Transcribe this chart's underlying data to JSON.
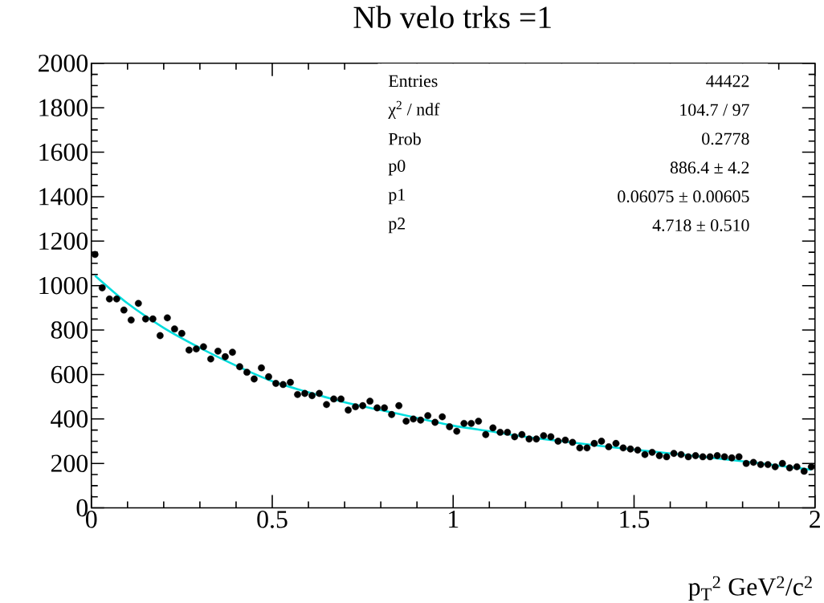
{
  "chart_data": {
    "type": "scatter",
    "title": "Nb velo trks =1",
    "xlabel": "p$_{T}$$^{2}$ GeV$^{2}$/c$^{2}$",
    "x": [
      0.01,
      0.03,
      0.05,
      0.07,
      0.09,
      0.11,
      0.13,
      0.15,
      0.17,
      0.19,
      0.21,
      0.23,
      0.25,
      0.27,
      0.29,
      0.31,
      0.33,
      0.35,
      0.37,
      0.39,
      0.41,
      0.43,
      0.45,
      0.47,
      0.49,
      0.51,
      0.53,
      0.55,
      0.57,
      0.59,
      0.61,
      0.63,
      0.65,
      0.67,
      0.69,
      0.71,
      0.73,
      0.75,
      0.77,
      0.79,
      0.81,
      0.83,
      0.85,
      0.87,
      0.89,
      0.91,
      0.93,
      0.95,
      0.97,
      0.99,
      1.01,
      1.03,
      1.05,
      1.07,
      1.09,
      1.11,
      1.13,
      1.15,
      1.17,
      1.19,
      1.21,
      1.23,
      1.25,
      1.27,
      1.29,
      1.31,
      1.33,
      1.35,
      1.37,
      1.39,
      1.41,
      1.43,
      1.45,
      1.47,
      1.49,
      1.51,
      1.53,
      1.55,
      1.57,
      1.59,
      1.61,
      1.63,
      1.65,
      1.67,
      1.69,
      1.71,
      1.73,
      1.75,
      1.77,
      1.79,
      1.81,
      1.83,
      1.85,
      1.87,
      1.89,
      1.91,
      1.93,
      1.95,
      1.97,
      1.99
    ],
    "series": [
      {
        "color": "#000000",
        "marker": "circle",
        "values": [
          1140,
          990,
          940,
          940,
          890,
          845,
          920,
          850,
          850,
          775,
          855,
          805,
          785,
          710,
          715,
          725,
          670,
          705,
          680,
          700,
          635,
          610,
          580,
          630,
          590,
          560,
          555,
          565,
          510,
          515,
          505,
          515,
          465,
          490,
          490,
          440,
          455,
          460,
          480,
          450,
          450,
          420,
          460,
          390,
          400,
          395,
          415,
          385,
          410,
          365,
          345,
          380,
          380,
          390,
          330,
          360,
          340,
          340,
          320,
          330,
          310,
          310,
          325,
          320,
          300,
          305,
          295,
          270,
          270,
          290,
          300,
          275,
          290,
          270,
          265,
          260,
          240,
          250,
          235,
          230,
          245,
          240,
          230,
          235,
          230,
          230,
          235,
          230,
          225,
          230,
          200,
          205,
          195,
          195,
          185,
          200,
          180,
          185,
          165,
          185
        ]
      },
      {
        "type": "line",
        "marker": "none",
        "color": "#00dddd",
        "x": [
          0.01,
          0.1,
          0.2,
          0.3,
          0.4,
          0.5,
          0.6,
          0.7,
          0.8,
          0.9,
          1.0,
          1.1,
          1.2,
          1.3,
          1.4,
          1.5,
          1.6,
          1.7,
          1.8,
          1.9,
          1.99
        ],
        "values": [
          1045,
          920,
          810,
          720,
          640,
          570,
          520,
          475,
          440,
          405,
          370,
          345,
          320,
          300,
          280,
          262,
          245,
          228,
          210,
          190,
          172
        ]
      }
    ],
    "xlim": [
      0,
      2
    ],
    "ylim": [
      0,
      2000
    ],
    "xticks": [
      0,
      0.5,
      1,
      1.5,
      2
    ],
    "yticks": [
      0,
      200,
      400,
      600,
      800,
      1000,
      1200,
      1400,
      1600,
      1800,
      2000
    ],
    "grid": false,
    "annotations": [
      "Entries",
      "44422",
      "χ$^{2}$ / ndf",
      "104.7 / 97",
      "Prob",
      "0.2778",
      "p0",
      "886.4 ± 4.2",
      "p1",
      "0.06075 ± 0.00605",
      "p2",
      "4.718 ± 0.510"
    ]
  }
}
